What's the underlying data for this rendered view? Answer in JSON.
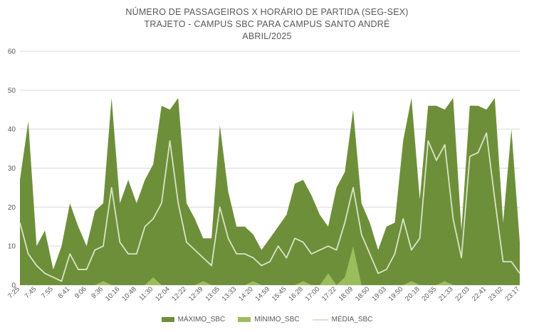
{
  "chart_data": {
    "type": "area",
    "title": "NÚMERO DE PASSAGEIROS X HORÁRIO DE PARTIDA (SEG-SEX)",
    "subtitle": "TRAJETO - CAMPUS SBC PARA CAMPUS SANTO ANDRÉ",
    "subtitle2": "ABRIL/2025",
    "ylim": [
      0,
      60
    ],
    "yticks": [
      0,
      10,
      20,
      30,
      40,
      50,
      60
    ],
    "grid": true,
    "legend_position": "bottom",
    "tick_labels": [
      "7:25",
      "7:45",
      "7:55",
      "8:41",
      "9:06",
      "9:36",
      "10:16",
      "10:48",
      "11:30",
      "12:04",
      "12:22",
      "12:39",
      "13:05",
      "13:33",
      "14:20",
      "14:59",
      "15:45",
      "16:28",
      "17:00",
      "17:22",
      "18:09",
      "18:50",
      "19:03",
      "19:50",
      "20:18",
      "20:55",
      "21:33",
      "22:03",
      "22:41",
      "23:02",
      "23:17"
    ],
    "colors": {
      "max": "#6e8f3a",
      "min": "#9bbd5b",
      "avg": "#d9e4c6"
    },
    "series": [
      {
        "name": "MÁXIMO_SBC",
        "values": [
          27,
          42,
          10,
          14,
          4,
          10,
          21,
          15,
          10,
          19,
          21,
          48,
          21,
          27,
          21,
          27,
          31,
          46,
          45,
          48,
          21,
          17,
          12,
          12,
          41,
          24,
          15,
          15,
          13,
          9,
          12,
          15,
          18,
          26,
          27,
          23,
          18,
          15,
          25,
          29,
          45,
          21,
          16,
          9,
          15,
          16,
          37,
          48,
          22,
          46,
          46,
          45,
          48,
          14,
          46,
          46,
          45,
          48,
          16,
          40,
          11
        ]
      },
      {
        "name": "MÍNIMO_SBC",
        "values": [
          0,
          0,
          0,
          0,
          0,
          0,
          0,
          0,
          0,
          0,
          1,
          0,
          0,
          0,
          0,
          0,
          2,
          0,
          0,
          0,
          0,
          0,
          1,
          0,
          0,
          0,
          0,
          0,
          1,
          0,
          0,
          0,
          0,
          0,
          1,
          0,
          0,
          3,
          0,
          2,
          10,
          0,
          0,
          0,
          0,
          0,
          0,
          1,
          0,
          0,
          0,
          1,
          0,
          0,
          0,
          0,
          0,
          0,
          0,
          0,
          0
        ]
      },
      {
        "name": "MÉDIA_SBC",
        "values": [
          16,
          8,
          5,
          3,
          2,
          1,
          8,
          4,
          4,
          9,
          10,
          25,
          11,
          8,
          8,
          15,
          17,
          21,
          37,
          21,
          11,
          9,
          7,
          5,
          20,
          12,
          8,
          8,
          7,
          5,
          6,
          10,
          7,
          12,
          11,
          8,
          9,
          10,
          9,
          16,
          25,
          13,
          8,
          3,
          4,
          8,
          17,
          9,
          12,
          37,
          32,
          36,
          17,
          7,
          33,
          34,
          39,
          22,
          6,
          6,
          3
        ]
      }
    ]
  }
}
